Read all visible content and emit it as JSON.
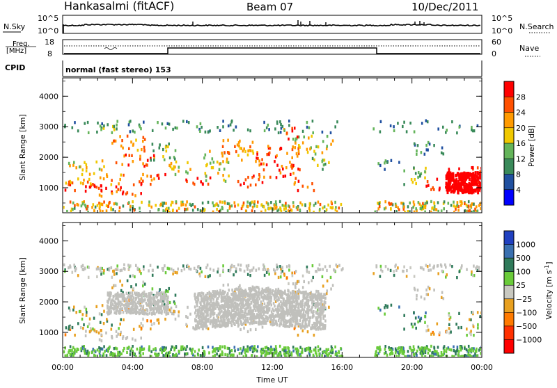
{
  "header": {
    "station": "Hankasalmi (fitACF)",
    "beam": "Beam 07",
    "date": "10/Dec/2011"
  },
  "top_panels": {
    "nsky_label": "N.Sky",
    "nsearch_label": "N.Search",
    "nsky_ticks": [
      "10^5",
      "10^0"
    ],
    "nsearch_ticks": [
      "10^5",
      "10^0"
    ],
    "freq_label_1": "Freq.",
    "freq_label_2": "[MHz]",
    "freq_ticks": [
      "18",
      "8"
    ],
    "nave_ticks": [
      "60",
      "0"
    ],
    "nave_label": "Nave",
    "cpid_label": "CPID",
    "cpid_text": "normal (fast stereo) 153"
  },
  "colors": {
    "power_scale": [
      "#0000ff",
      "#2050a0",
      "#3a8a5a",
      "#64b45a",
      "#f0c800",
      "#ff9a00",
      "#ff5000",
      "#ff0000"
    ],
    "velocity_scale": [
      "#2040c0",
      "#3a70b0",
      "#2f7a5a",
      "#6acb3a",
      "#c8c8c0",
      "#e8a020",
      "#ff7a00",
      "#ff3000",
      "#ff0000"
    ],
    "ground_scatter": "#c0c0bc"
  },
  "chart_data": [
    {
      "type": "heatmap",
      "name": "power-panel",
      "xlabel": "Time UT",
      "ylabel": "Slant Range [km]",
      "xlim": [
        0,
        24
      ],
      "ylim": [
        180,
        4600
      ],
      "x_ticks": [
        "00:00",
        "04:00",
        "08:00",
        "12:00",
        "16:00",
        "20:00",
        "00:00"
      ],
      "y_ticks": [
        1000,
        2000,
        3000,
        4000
      ],
      "colorbar_label": "Power [dB]",
      "colorbar_ticks": [
        "4",
        "8",
        "12",
        "16",
        "20",
        "24",
        "28"
      ],
      "data_gap_hours": [
        16.0,
        17.7
      ]
    },
    {
      "type": "heatmap",
      "name": "velocity-panel",
      "xlabel": "Time UT",
      "ylabel": "Slant Range [km]",
      "xlim": [
        0,
        24
      ],
      "ylim": [
        180,
        4600
      ],
      "x_ticks": [
        "00:00",
        "04:00",
        "08:00",
        "12:00",
        "16:00",
        "20:00",
        "00:00"
      ],
      "y_ticks": [
        1000,
        2000,
        3000,
        4000
      ],
      "colorbar_label": "Velocity [m s",
      "colorbar_label_sup": "-1",
      "colorbar_label_end": "]",
      "colorbar_ticks": [
        "1000",
        "500",
        "100",
        "25",
        "−25",
        "−100",
        "−500",
        "−1000"
      ],
      "data_gap_hours": [
        16.0,
        17.7
      ]
    }
  ]
}
